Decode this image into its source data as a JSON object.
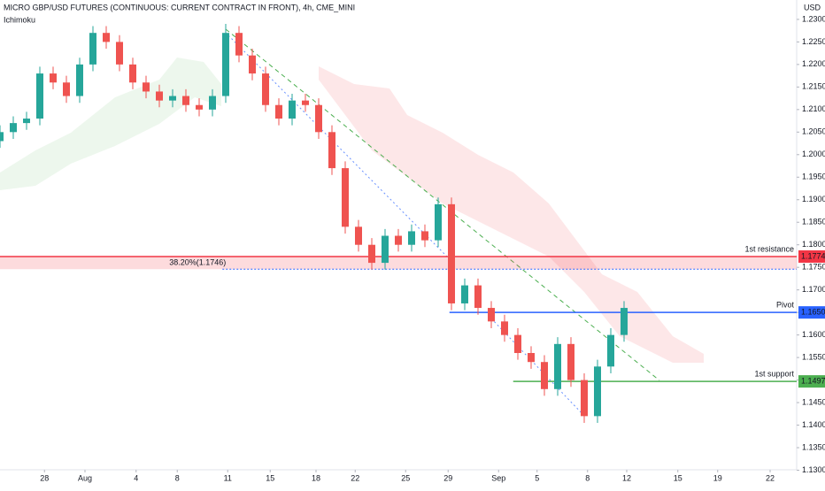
{
  "chart_data": {
    "type": "candlestick",
    "title": "MICRO GBP/USD FUTURES (CONTINUOUS: CURRENT CONTRACT IN FRONT), 4h, CME_MINI",
    "subtitle": "Ichimoku",
    "y_axis_label": "USD",
    "up_color": "#26a69a",
    "down_color": "#ef5350",
    "xlim": [
      0,
      120
    ],
    "ylim": [
      1.1301,
      1.2343
    ],
    "xticks": [
      {
        "value": 6.7,
        "label": "28"
      },
      {
        "value": 12.8,
        "label": "Aug"
      },
      {
        "value": 20.5,
        "label": "4"
      },
      {
        "value": 26.7,
        "label": "8"
      },
      {
        "value": 34.3,
        "label": "11"
      },
      {
        "value": 40.7,
        "label": "15"
      },
      {
        "value": 47.6,
        "label": "18"
      },
      {
        "value": 53.5,
        "label": "22"
      },
      {
        "value": 61.1,
        "label": "25"
      },
      {
        "value": 67.5,
        "label": "29"
      },
      {
        "value": 75.1,
        "label": "Sep"
      },
      {
        "value": 80.9,
        "label": "5"
      },
      {
        "value": 88.5,
        "label": "8"
      },
      {
        "value": 94.4,
        "label": "12"
      },
      {
        "value": 102.1,
        "label": "15"
      },
      {
        "value": 108.1,
        "label": "19"
      },
      {
        "value": 116,
        "label": "22"
      }
    ],
    "yticks": [
      {
        "value": 1.13,
        "label": "1.1300"
      },
      {
        "value": 1.135,
        "label": "1.1350"
      },
      {
        "value": 1.14,
        "label": "1.1400"
      },
      {
        "value": 1.145,
        "label": "1.1450"
      },
      {
        "value": 1.15,
        "label": "1.1500"
      },
      {
        "value": 1.155,
        "label": "1.1550"
      },
      {
        "value": 1.16,
        "label": "1.1600"
      },
      {
        "value": 1.165,
        "label": "1.1650"
      },
      {
        "value": 1.17,
        "label": "1.1700"
      },
      {
        "value": 1.175,
        "label": "1.1750"
      },
      {
        "value": 1.18,
        "label": "1.1800"
      },
      {
        "value": 1.185,
        "label": "1.1850"
      },
      {
        "value": 1.19,
        "label": "1.1900"
      },
      {
        "value": 1.195,
        "label": "1.1950"
      },
      {
        "value": 1.2,
        "label": "1.2000"
      },
      {
        "value": 1.205,
        "label": "1.2050"
      },
      {
        "value": 1.21,
        "label": "1.2100"
      },
      {
        "value": 1.215,
        "label": "1.2150"
      },
      {
        "value": 1.22,
        "label": "1.2200"
      },
      {
        "value": 1.225,
        "label": "1.2250"
      },
      {
        "value": 1.23,
        "label": "1.2300"
      }
    ],
    "x": [
      0,
      2,
      4,
      6,
      8,
      10,
      12,
      14,
      16,
      18,
      20,
      22,
      24,
      26,
      28,
      30,
      32,
      34,
      36,
      38,
      40,
      42,
      44,
      46,
      48,
      50,
      52,
      54,
      56,
      58,
      60,
      62,
      64,
      66,
      68,
      70,
      72,
      74,
      76,
      78,
      80,
      82,
      84,
      86,
      88,
      90,
      92,
      94
    ],
    "open": [
      1.203,
      1.205,
      1.207,
      1.208,
      1.218,
      1.216,
      1.213,
      1.22,
      1.227,
      1.225,
      1.22,
      1.216,
      1.214,
      1.212,
      1.213,
      1.211,
      1.21,
      1.213,
      1.227,
      1.222,
      1.218,
      1.211,
      1.208,
      1.212,
      1.211,
      1.205,
      1.197,
      1.184,
      1.18,
      1.176,
      1.182,
      1.18,
      1.183,
      1.181,
      1.189,
      1.167,
      1.171,
      1.166,
      1.163,
      1.16,
      1.156,
      1.154,
      1.148,
      1.158,
      1.15,
      1.142,
      1.153,
      1.16
    ],
    "high": [
      1.2065,
      1.2085,
      1.2095,
      1.2195,
      1.2195,
      1.2175,
      1.2215,
      1.2285,
      1.2285,
      1.2265,
      1.2215,
      1.2175,
      1.2155,
      1.2145,
      1.2145,
      1.2125,
      1.2145,
      1.229,
      1.2285,
      1.2235,
      1.2195,
      1.2125,
      1.2135,
      1.2135,
      1.2125,
      1.2065,
      1.1985,
      1.1855,
      1.1815,
      1.1835,
      1.1835,
      1.1845,
      1.1845,
      1.1905,
      1.1905,
      1.1725,
      1.1725,
      1.1675,
      1.1645,
      1.1615,
      1.1575,
      1.1555,
      1.1595,
      1.1595,
      1.1515,
      1.1545,
      1.1615,
      1.1675
    ],
    "low": [
      1.2015,
      1.2035,
      1.2055,
      1.2065,
      1.2145,
      1.2115,
      1.2115,
      1.2185,
      1.2235,
      1.2185,
      1.2145,
      1.2125,
      1.2105,
      1.2105,
      1.2095,
      1.2085,
      1.2085,
      1.2115,
      1.2205,
      1.2165,
      1.2095,
      1.2065,
      1.2065,
      1.2095,
      1.2035,
      1.1955,
      1.1825,
      1.1785,
      1.1745,
      1.1745,
      1.1785,
      1.1785,
      1.1795,
      1.1795,
      1.1655,
      1.1655,
      1.1645,
      1.1615,
      1.1585,
      1.1545,
      1.1525,
      1.1465,
      1.1465,
      1.1485,
      1.1405,
      1.1405,
      1.1515,
      1.1585
    ],
    "close": [
      1.205,
      1.207,
      1.208,
      1.218,
      1.216,
      1.213,
      1.22,
      1.227,
      1.225,
      1.22,
      1.216,
      1.214,
      1.212,
      1.213,
      1.211,
      1.21,
      1.213,
      1.227,
      1.222,
      1.218,
      1.211,
      1.208,
      1.212,
      1.211,
      1.205,
      1.197,
      1.184,
      1.18,
      1.176,
      1.182,
      1.18,
      1.183,
      1.181,
      1.189,
      1.167,
      1.171,
      1.166,
      1.163,
      1.16,
      1.156,
      1.154,
      1.148,
      1.158,
      1.15,
      1.142,
      1.153,
      1.16,
      1.166
    ],
    "levels": [
      {
        "name": "1st resistance",
        "price": 1.1774,
        "color": "#f23645",
        "start": 0
      },
      {
        "name": "Pivot",
        "price": {
          "value": 1.165,
          "label": "1.1650"
        },
        "color": "#2962ff",
        "start": 67.7
      },
      {
        "name": "1st support",
        "price": 1.1497,
        "color": "#4caf50",
        "start": 77.3
      }
    ],
    "fib": {
      "label": "38.20%(1.1746)",
      "value": 1.1746
    }
  }
}
